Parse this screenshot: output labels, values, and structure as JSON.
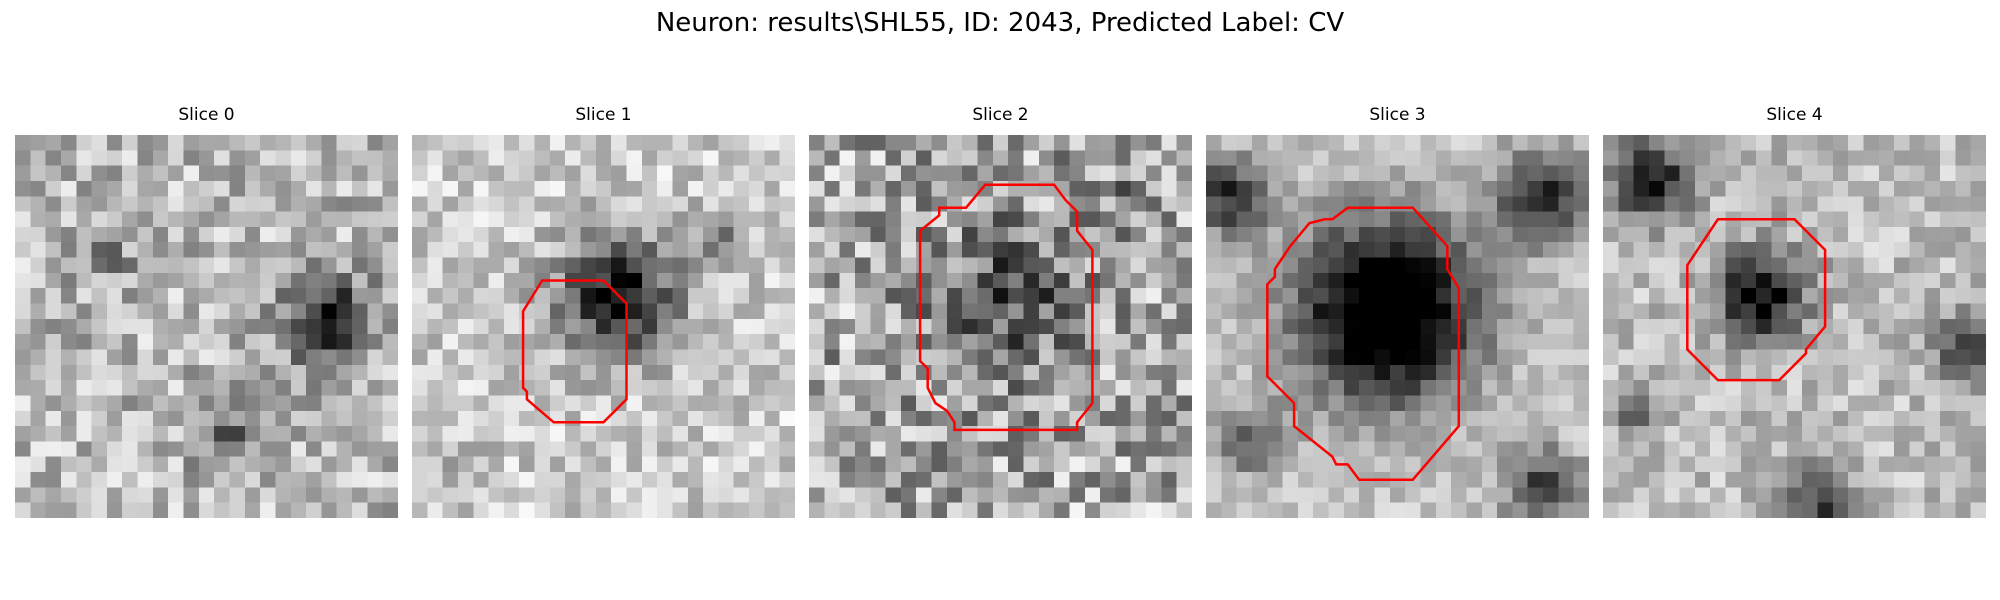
{
  "title": "Neuron: results\\SHL55, ID: 2043, Predicted Label: CV",
  "panels": [
    {
      "label": "Slice 0",
      "grid": 25,
      "base": 0.72,
      "noise": 0.22,
      "seed": 11,
      "blobs": [
        {
          "cx": 20.5,
          "cy": 12.0,
          "r": 3.2,
          "depth": 0.72
        },
        {
          "cx": 14,
          "cy": 20,
          "r": 2.5,
          "depth": 0.3
        },
        {
          "cx": 6,
          "cy": 8,
          "r": 2.5,
          "depth": 0.18
        }
      ],
      "outline": []
    },
    {
      "label": "Slice 1",
      "grid": 25,
      "base": 0.8,
      "noise": 0.18,
      "seed": 23,
      "blobs": [
        {
          "cx": 13.5,
          "cy": 10.5,
          "r": 4.6,
          "depth": 0.72
        },
        {
          "cx": 20,
          "cy": 7,
          "r": 2,
          "depth": 0.3
        },
        {
          "cx": 3,
          "cy": 22,
          "r": 3,
          "depth": 0.1
        }
      ],
      "outline": [
        [
          0.34,
          0.38
        ],
        [
          0.5,
          0.38
        ],
        [
          0.56,
          0.44
        ],
        [
          0.56,
          0.69
        ],
        [
          0.5,
          0.75
        ],
        [
          0.37,
          0.75
        ],
        [
          0.3,
          0.69
        ],
        [
          0.3,
          0.67
        ],
        [
          0.29,
          0.66
        ],
        [
          0.29,
          0.46
        ]
      ]
    },
    {
      "label": "Slice 2",
      "grid": 25,
      "base": 0.66,
      "noise": 0.3,
      "seed": 37,
      "blobs": [
        {
          "cx": 12.8,
          "cy": 10.8,
          "r": 5.8,
          "depth": 0.35
        },
        {
          "cx": 21,
          "cy": 4,
          "r": 2,
          "depth": 0.2
        }
      ],
      "outline": [
        [
          0.41,
          0.19
        ],
        [
          0.46,
          0.13
        ],
        [
          0.64,
          0.13
        ],
        [
          0.67,
          0.17
        ],
        [
          0.7,
          0.2
        ],
        [
          0.7,
          0.25
        ],
        [
          0.74,
          0.3
        ],
        [
          0.74,
          0.7
        ],
        [
          0.7,
          0.75
        ],
        [
          0.7,
          0.77
        ],
        [
          0.67,
          0.77
        ],
        [
          0.38,
          0.77
        ],
        [
          0.38,
          0.75
        ],
        [
          0.36,
          0.72
        ],
        [
          0.33,
          0.7
        ],
        [
          0.31,
          0.66
        ],
        [
          0.31,
          0.61
        ],
        [
          0.29,
          0.59
        ],
        [
          0.29,
          0.25
        ],
        [
          0.34,
          0.21
        ],
        [
          0.34,
          0.19
        ]
      ]
    },
    {
      "label": "Slice 3",
      "grid": 25,
      "base": 0.78,
      "noise": 0.12,
      "seed": 41,
      "blobs": [
        {
          "cx": 11.8,
          "cy": 11.5,
          "r": 7.0,
          "depth": 1.0
        },
        {
          "cx": 22,
          "cy": 4,
          "r": 3.5,
          "depth": 0.65
        },
        {
          "cx": 1.5,
          "cy": 4,
          "r": 3,
          "depth": 0.6
        },
        {
          "cx": 3,
          "cy": 20,
          "r": 2.5,
          "depth": 0.45
        },
        {
          "cx": 22,
          "cy": 23,
          "r": 3,
          "depth": 0.55
        }
      ],
      "outline": [
        [
          0.37,
          0.19
        ],
        [
          0.54,
          0.19
        ],
        [
          0.63,
          0.29
        ],
        [
          0.63,
          0.35
        ],
        [
          0.66,
          0.4
        ],
        [
          0.66,
          0.76
        ],
        [
          0.54,
          0.9
        ],
        [
          0.4,
          0.9
        ],
        [
          0.37,
          0.86
        ],
        [
          0.34,
          0.86
        ],
        [
          0.33,
          0.84
        ],
        [
          0.23,
          0.76
        ],
        [
          0.23,
          0.7
        ],
        [
          0.16,
          0.63
        ],
        [
          0.16,
          0.39
        ],
        [
          0.18,
          0.37
        ],
        [
          0.18,
          0.35
        ],
        [
          0.22,
          0.29
        ],
        [
          0.27,
          0.23
        ],
        [
          0.31,
          0.22
        ],
        [
          0.33,
          0.22
        ]
      ]
    },
    {
      "label": "Slice 4",
      "grid": 25,
      "base": 0.74,
      "noise": 0.16,
      "seed": 53,
      "blobs": [
        {
          "cx": 10.3,
          "cy": 10.5,
          "r": 3.4,
          "depth": 0.75
        },
        {
          "cx": 3,
          "cy": 3,
          "r": 3,
          "depth": 0.7
        },
        {
          "cx": 14,
          "cy": 24,
          "r": 2.5,
          "depth": 0.5
        },
        {
          "cx": 24,
          "cy": 14,
          "r": 2.5,
          "depth": 0.5
        },
        {
          "cx": 2,
          "cy": 18,
          "r": 2,
          "depth": 0.3
        }
      ],
      "outline": [
        [
          0.3,
          0.22
        ],
        [
          0.5,
          0.22
        ],
        [
          0.58,
          0.3
        ],
        [
          0.58,
          0.5
        ],
        [
          0.53,
          0.56
        ],
        [
          0.53,
          0.57
        ],
        [
          0.46,
          0.64
        ],
        [
          0.3,
          0.64
        ],
        [
          0.22,
          0.56
        ],
        [
          0.22,
          0.34
        ]
      ]
    }
  ],
  "colors": {
    "outline": "#ff0000"
  }
}
